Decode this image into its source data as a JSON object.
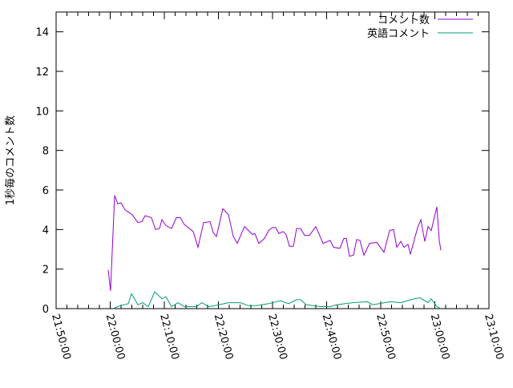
{
  "chart_data": {
    "type": "line",
    "title": "",
    "xlabel": "",
    "ylabel": "1秒毎のコメント数",
    "xlim": [
      "21:50:00",
      "23:10:00"
    ],
    "ylim": [
      0,
      15
    ],
    "x_ticks": [
      "21:50:00",
      "22:00:00",
      "22:10:00",
      "22:20:00",
      "22:30:00",
      "22:40:00",
      "22:50:00",
      "23:00:00",
      "23:10:00"
    ],
    "y_ticks": [
      0,
      2,
      4,
      6,
      8,
      10,
      12,
      14
    ],
    "grid": false,
    "legend_position": "top-right",
    "series": [
      {
        "name": "コメント数",
        "color": "#9400d3",
        "x": [
          "21:59:38",
          "22:00:04",
          "22:00:49",
          "22:01:24",
          "22:02:00",
          "22:02:44",
          "22:04:04",
          "22:05:07",
          "22:05:51",
          "22:06:27",
          "22:07:38",
          "22:08:22",
          "22:09:07",
          "22:09:33",
          "22:10:18",
          "22:11:20",
          "22:12:13",
          "22:12:58",
          "22:13:42",
          "22:15:20",
          "22:16:13",
          "22:17:16",
          "22:18:27",
          "22:19:02",
          "22:19:38",
          "22:20:49",
          "22:21:51",
          "22:22:44",
          "22:23:29",
          "22:24:49",
          "22:26:18",
          "22:26:44",
          "22:27:29",
          "22:28:31",
          "22:29:16",
          "22:30:00",
          "22:30:36",
          "22:31:11",
          "22:31:56",
          "22:32:31",
          "22:33:07",
          "22:33:51",
          "22:34:27",
          "22:35:11",
          "22:35:56",
          "22:36:49",
          "22:38:00",
          "22:39:20",
          "22:40:40",
          "22:41:16",
          "22:42:27",
          "22:43:11",
          "22:43:38",
          "22:44:13",
          "22:44:58",
          "22:45:33",
          "22:46:09",
          "22:46:53",
          "22:47:56",
          "22:49:16",
          "22:50:36",
          "22:51:38",
          "22:52:22",
          "22:52:58",
          "22:53:42",
          "22:54:18",
          "22:55:02",
          "22:55:29",
          "22:56:49",
          "22:57:24",
          "22:58:09",
          "22:58:44",
          "22:59:20",
          "23:00:22",
          "23:00:49",
          "23:01:07"
        ],
        "y": [
          1.96,
          0.9,
          5.73,
          5.3,
          5.35,
          5.0,
          4.75,
          4.35,
          4.4,
          4.7,
          4.6,
          4.0,
          4.05,
          4.5,
          4.2,
          4.05,
          4.6,
          4.6,
          4.25,
          3.9,
          3.1,
          4.35,
          4.4,
          3.85,
          3.65,
          5.05,
          4.75,
          3.65,
          3.3,
          4.15,
          3.75,
          3.8,
          3.3,
          3.55,
          3.95,
          4.1,
          4.1,
          3.8,
          3.9,
          3.75,
          3.15,
          3.15,
          4.05,
          4.05,
          3.7,
          3.7,
          4.15,
          3.3,
          3.45,
          3.1,
          3.05,
          3.55,
          3.55,
          2.65,
          2.7,
          3.5,
          3.45,
          2.7,
          3.3,
          3.35,
          2.85,
          3.95,
          4.0,
          3.1,
          3.4,
          3.1,
          3.25,
          2.75,
          4.1,
          4.5,
          3.4,
          4.15,
          3.95,
          5.15,
          3.45,
          2.95
        ]
      },
      {
        "name": "英語コメント",
        "color": "#009e73",
        "x": [
          "22:00:31",
          "22:01:51",
          "22:03:20",
          "22:03:56",
          "22:05:07",
          "22:06:00",
          "22:07:02",
          "22:08:13",
          "22:09:33",
          "22:10:18",
          "22:11:20",
          "22:12:31",
          "22:13:42",
          "22:15:56",
          "22:16:58",
          "22:18:09",
          "22:19:20",
          "22:21:51",
          "22:24:04",
          "22:25:33",
          "22:27:02",
          "22:29:16",
          "22:31:29",
          "22:32:58",
          "22:34:27",
          "22:35:11",
          "22:36:13",
          "22:38:53",
          "22:40:40",
          "22:41:51",
          "22:44:49",
          "22:47:29",
          "22:48:31",
          "22:51:47",
          "22:53:42",
          "22:55:29",
          "22:57:16",
          "22:58:44",
          "22:59:20",
          "23:00:22",
          "23:01:07"
        ],
        "y": [
          0,
          0.15,
          0.25,
          0.75,
          0.2,
          0.3,
          0.1,
          0.85,
          0.5,
          0.6,
          0.1,
          0.3,
          0.1,
          0.1,
          0.3,
          0.1,
          0.15,
          0.3,
          0.3,
          0.15,
          0.15,
          0.25,
          0.4,
          0.25,
          0.45,
          0.45,
          0.2,
          0.1,
          0.1,
          0.2,
          0.3,
          0.35,
          0.2,
          0.35,
          0.3,
          0.45,
          0.55,
          0.3,
          0.5,
          0.1,
          0
        ]
      }
    ]
  }
}
